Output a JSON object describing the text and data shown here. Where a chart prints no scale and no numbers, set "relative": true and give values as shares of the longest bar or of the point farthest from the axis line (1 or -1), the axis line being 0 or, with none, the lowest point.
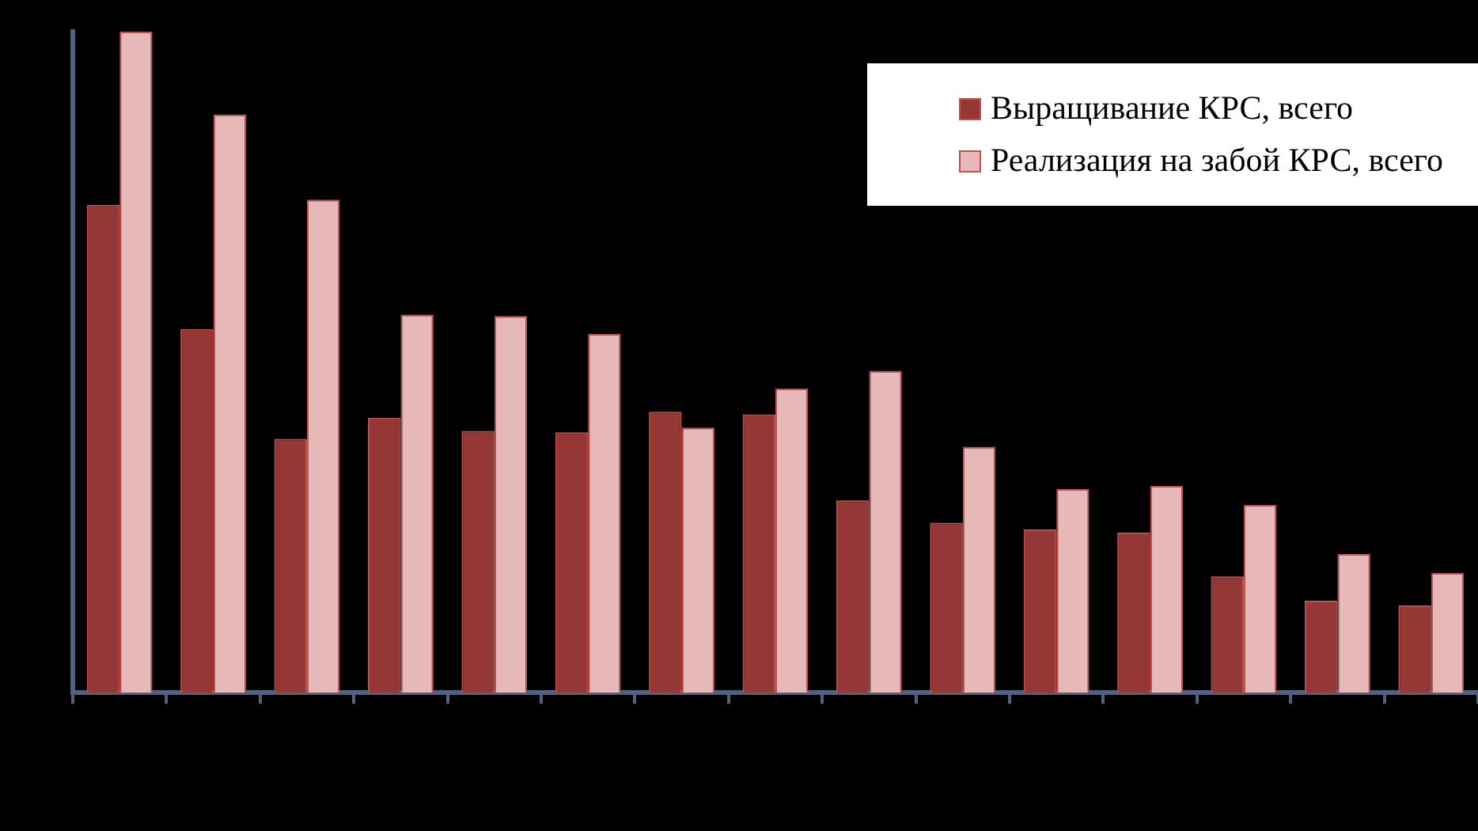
{
  "chart_data": {
    "type": "bar",
    "relative": true,
    "legend": "top right",
    "categories": [
      null,
      null,
      null,
      null,
      null,
      null,
      null,
      null,
      null,
      null,
      null,
      null,
      null,
      null,
      null
    ],
    "series": [
      {
        "name": "Выращивание КРС, всего",
        "color": "#953735",
        "values": [
          0.738,
          0.55,
          0.384,
          0.416,
          0.396,
          0.394,
          0.425,
          0.421,
          0.291,
          0.257,
          0.247,
          0.242,
          0.176,
          0.139,
          0.132
        ]
      },
      {
        "name": "Реализация на забой КРС, всего",
        "color": "#e6b9b8",
        "values": [
          1,
          0.875,
          0.746,
          0.572,
          0.57,
          0.543,
          0.401,
          0.46,
          0.487,
          0.372,
          0.308,
          0.313,
          0.284,
          0.21,
          0.181
        ]
      }
    ]
  }
}
